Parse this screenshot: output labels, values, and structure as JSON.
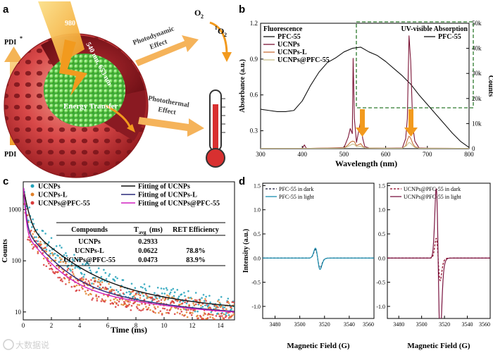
{
  "panels": {
    "a": "a",
    "b": "b",
    "c": "c",
    "d": "d"
  },
  "schematic": {
    "pdi_top": "PDI",
    "pdi_top_sup": "*",
    "pdi_bottom": "PDI",
    "laser": "980 nm",
    "emission": "540 nm, 653 nm",
    "energy_transfer": "Energy Transfer",
    "photodynamic_1": "Photodynamic",
    "photodynamic_2": "Effect",
    "o2": "O",
    "o2_sub": "2",
    "singlet_sup": "1",
    "singlet": "O",
    "singlet_sub": "2",
    "photothermal_1": "Photothermal",
    "photothermal_2": "Effect"
  },
  "chart_data": [
    {
      "id": "b",
      "type": "line",
      "xlabel": "Wavelength (nm)",
      "ylabel": "Absorbance (a.u.)",
      "y2label": "Counts",
      "xlim": [
        300,
        800
      ],
      "ylim": [
        0.15,
        1.2
      ],
      "y2lim": [
        0,
        50000
      ],
      "xticks": [
        300,
        400,
        500,
        600,
        700,
        800
      ],
      "yticks": [
        0.3,
        0.6,
        0.9,
        1.2
      ],
      "y2ticks": [
        "0",
        "10k",
        "20k",
        "30k",
        "40k",
        "50k"
      ],
      "legend_left_title": "Fluorescence",
      "legend_right_title": "UV-visible Absorption",
      "legend_left": [
        "PFC-55",
        "UCNPs",
        "UCNPs-L",
        "UCNPs@PFC-55"
      ],
      "legend_right": [
        "PFC-55"
      ],
      "series": [
        {
          "name": "PFC-55",
          "axis": "left",
          "color": "#111111",
          "x": [
            300,
            320,
            340,
            360,
            380,
            400,
            420,
            440,
            460,
            480,
            500,
            520,
            540,
            560,
            580,
            600,
            620,
            640,
            660,
            680,
            700,
            720,
            740,
            760,
            780,
            800
          ],
          "y": [
            0.48,
            0.47,
            0.46,
            0.46,
            0.47,
            0.55,
            0.68,
            0.79,
            0.87,
            0.91,
            0.96,
            0.99,
            1.0,
            0.96,
            0.93,
            0.88,
            0.82,
            0.76,
            0.69,
            0.6,
            0.52,
            0.44,
            0.36,
            0.28,
            0.21,
            0.16
          ]
        },
        {
          "name": "UCNPs",
          "axis": "right",
          "color": "#7b1436",
          "x": [
            300,
            400,
            405,
            410,
            500,
            510,
            515,
            520,
            522,
            525,
            530,
            540,
            545,
            550,
            560,
            600,
            640,
            648,
            652,
            656,
            660,
            665,
            670,
            680,
            700,
            800
          ],
          "y": [
            100,
            100,
            1500,
            100,
            400,
            4500,
            8000,
            6000,
            36000,
            12000,
            2500,
            11000,
            4000,
            800,
            300,
            200,
            300,
            4000,
            12000,
            45000,
            35000,
            9000,
            3000,
            300,
            200,
            100
          ]
        },
        {
          "name": "UCNPs-L",
          "axis": "right",
          "color": "#c8703a",
          "x": [
            300,
            400,
            500,
            510,
            515,
            520,
            525,
            530,
            540,
            545,
            550,
            560,
            600,
            640,
            648,
            652,
            656,
            660,
            665,
            670,
            680,
            800
          ],
          "y": [
            100,
            100,
            300,
            1500,
            2500,
            3000,
            2800,
            1200,
            2000,
            1000,
            300,
            200,
            150,
            200,
            1200,
            3500,
            5000,
            4200,
            2000,
            800,
            200,
            100
          ]
        },
        {
          "name": "UCNPs@PFC-55",
          "axis": "right",
          "color": "#c9c08a",
          "x": [
            300,
            400,
            500,
            510,
            520,
            525,
            530,
            540,
            550,
            600,
            640,
            650,
            656,
            660,
            665,
            670,
            680,
            800
          ],
          "y": [
            100,
            100,
            200,
            900,
            1800,
            1700,
            800,
            1000,
            250,
            150,
            150,
            1200,
            2500,
            2100,
            1200,
            500,
            150,
            100
          ]
        }
      ]
    },
    {
      "id": "c",
      "type": "scatter",
      "xlabel": "Time (ms)",
      "ylabel": "Counts",
      "xlim": [
        0,
        15
      ],
      "ylim": [
        7,
        3500
      ],
      "yscale": "log",
      "xticks": [
        0,
        2,
        4,
        6,
        8,
        10,
        12,
        14
      ],
      "yticks": [
        10,
        100,
        1000
      ],
      "legend": [
        "UCNPs",
        "UCNPs-L",
        "UCNPs@PFC-55",
        "Fitting of UCNPs",
        "Fitting of UCNPs-L",
        "Fitting of UCNPs@PFC-55"
      ],
      "table": {
        "headers": [
          "Compounds",
          "T",
          "avg",
          "(ms)",
          "RET Efficiency"
        ],
        "rows": [
          [
            "UCNPs",
            "0.2933",
            ""
          ],
          [
            "UCNPs-L",
            "0.0622",
            "78.8%"
          ],
          [
            "UCNPs@PFC-55",
            "0.0473",
            "83.9%"
          ]
        ]
      },
      "series": [
        {
          "name": "UCNPs",
          "color": "#1fa0b8",
          "fit_color": "#111111",
          "tau": [
            0.25,
            1.6,
            5.5
          ],
          "amp": [
            2200,
            450,
            60
          ],
          "base": 9
        },
        {
          "name": "UCNPs-L",
          "color": "#e0802a",
          "fit_color": "#2a2a7a",
          "tau": [
            0.12,
            1.2,
            5.0
          ],
          "amp": [
            2600,
            380,
            45
          ],
          "base": 8
        },
        {
          "name": "UCNPs@PFC-55",
          "color": "#d83a3a",
          "fit_color": "#d020c0",
          "tau": [
            0.1,
            1.1,
            5.0
          ],
          "amp": [
            2800,
            330,
            40
          ],
          "base": 8
        }
      ]
    },
    {
      "id": "d1",
      "type": "line",
      "xlabel": "Magnetic Field (G)",
      "ylabel": "Intensity (a.u.)",
      "xlim": [
        3470,
        3560
      ],
      "ylim": [
        -1.25,
        1.55
      ],
      "xticks": [
        3480,
        3500,
        3520,
        3540,
        3560
      ],
      "yticks": [
        -1.0,
        -0.5,
        0.0,
        0.5,
        1.0,
        1.5
      ],
      "legend": [
        "PFC-55 in dark",
        "PFC-55 in light"
      ],
      "series": [
        {
          "name": "PFC-55 in dark",
          "color": "#1a1a3a",
          "dash": true,
          "amp": 0.18,
          "center": 3514.5,
          "width": 2.6
        },
        {
          "name": "PFC-55 in light",
          "color": "#1a8fb0",
          "dash": false,
          "amp": 0.21,
          "center": 3514.5,
          "width": 2.6
        }
      ]
    },
    {
      "id": "d2",
      "type": "line",
      "xlabel": "Magnetic Field (G)",
      "xlim": [
        3470,
        3560
      ],
      "ylim": [
        -1.25,
        1.55
      ],
      "xticks": [
        3480,
        3500,
        3520,
        3540,
        3560
      ],
      "yticks": [
        -1.0,
        -0.5,
        0.0,
        0.5,
        1.0,
        1.5
      ],
      "legend": [
        "UCNPs@PFC-55 in dark",
        "UCNPs@PFC-55 in light"
      ],
      "series": [
        {
          "name": "UCNPs@PFC-55 in dark",
          "color": "#8a0020",
          "dash": true,
          "amp": 0.42,
          "center": 3514.5,
          "width": 2.4
        },
        {
          "name": "UCNPs@PFC-55 in light",
          "color": "#7a1440",
          "dash": false,
          "amp": 1.48,
          "center": 3514.5,
          "width": 2.4
        }
      ]
    }
  ],
  "watermark": "大数据说"
}
